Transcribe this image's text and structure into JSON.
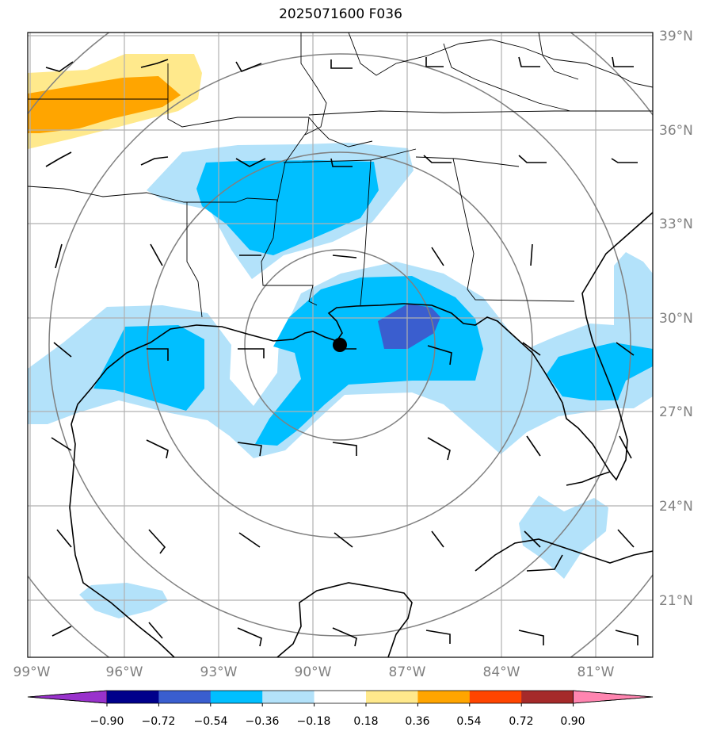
{
  "title": "2025071600 F036",
  "map": {
    "lat_labels": [
      "39°N",
      "36°N",
      "33°N",
      "30°N",
      "27°N",
      "24°N",
      "21°N"
    ],
    "lon_labels": [
      "99°W",
      "96°W",
      "93°W",
      "90°W",
      "87°W",
      "84°W",
      "81°W"
    ],
    "storm_center": {
      "lon": -89.1,
      "lat": 29.1
    }
  },
  "colorbar": {
    "tick_labels": [
      "−0.90",
      "−0.72",
      "−0.54",
      "−0.36",
      "−0.18",
      "0.18",
      "0.36",
      "0.54",
      "0.72",
      "0.90"
    ],
    "colors": [
      "#9932cc",
      "#00008b",
      "#3a5ecf",
      "#00bfff",
      "#b3e2fa",
      "#ffffff",
      "#ffe98c",
      "#ffa500",
      "#ff4500",
      "#a52a2a",
      "#ff85b0"
    ]
  }
}
